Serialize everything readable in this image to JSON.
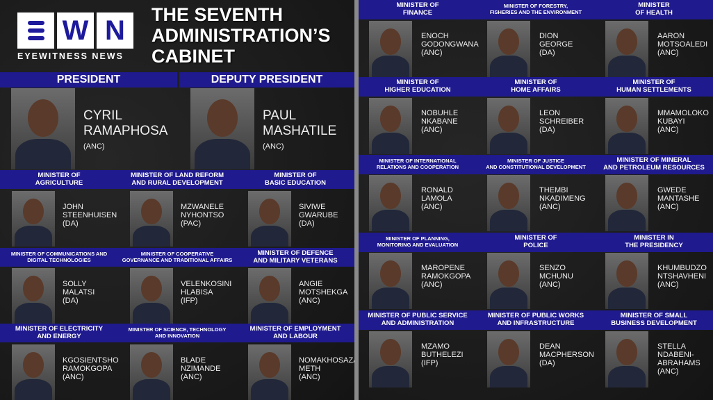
{
  "logo": {
    "letters": [
      "E",
      "W",
      "N"
    ],
    "subtitle": "EYEWITNESS NEWS"
  },
  "title": "THE SEVENTH\nADMINISTRATION’S\nCABINET",
  "colors": {
    "band": "#1f1a8e",
    "background": "#1b1b1b",
    "divider": "#8a8a8a"
  },
  "top": [
    {
      "role": "PRESIDENT",
      "name": "CYRIL\nRAMAPHOSA",
      "party": "(ANC)"
    },
    {
      "role": "DEPUTY PRESIDENT",
      "name": "PAUL\nMASHATILE",
      "party": "(ANC)"
    }
  ],
  "left_ministers": [
    {
      "role": "MINISTER OF\nAGRICULTURE",
      "name": "JOHN\nSTEENHUISEN",
      "party": "(DA)"
    },
    {
      "role": "MINISTER OF LAND REFORM\nAND RURAL DEVELOPMENT",
      "name": "MZWANELE\nNYHONTSO",
      "party": "(PAC)"
    },
    {
      "role": "MINISTER OF\nBASIC EDUCATION",
      "name": "SIVIWE\nGWARUBE",
      "party": "(DA)"
    },
    {
      "role": "MINISTER OF COMMUNICATIONS AND\nDIGITAL TECHNOLOGIES",
      "name": "SOLLY\nMALATSI",
      "party": "(DA)"
    },
    {
      "role": "MINISTER OF COOPERATIVE\nGOVERNANCE AND TRADITIONAL AFFAIRS",
      "name": "VELENKOSINI\nHLABISA",
      "party": "(IFP)"
    },
    {
      "role": "MINISTER OF DEFENCE\nAND MILITARY VETERANS",
      "name": "ANGIE\nMOTSHEKGA",
      "party": "(ANC)"
    },
    {
      "role": "MINISTER OF ELECTRICITY\nAND ENERGY",
      "name": "KGOSIENTSHO\nRAMOKGOPA",
      "party": "(ANC)"
    },
    {
      "role": "MINISTER OF SCIENCE, TECHNOLOGY\nAND INNOVATION",
      "name": "BLADE\nNZIMANDE",
      "party": "(ANC)"
    },
    {
      "role": "MINISTER OF EMPLOYMENT\nAND LABOUR",
      "name": "NOMAKHOSAZANA\nMETH",
      "party": "(ANC)"
    }
  ],
  "right_ministers": [
    {
      "role": "MINISTER OF\nFINANCE",
      "name": "ENOCH\nGODONGWANA",
      "party": "(ANC)"
    },
    {
      "role": "MINISTER OF FORESTRY,\nFISHERIES AND THE ENVIRONMENT",
      "name": "DION\nGEORGE",
      "party": "(DA)"
    },
    {
      "role": "MINISTER\nOF HEALTH",
      "name": "AARON\nMOTSOALEDI",
      "party": "(ANC)"
    },
    {
      "role": "MINISTER OF\nHIGHER EDUCATION",
      "name": "NOBUHLE\nNKABANE",
      "party": "(ANC)"
    },
    {
      "role": "MINISTER OF\nHOME AFFAIRS",
      "name": "LEON\nSCHREIBER",
      "party": "(DA)"
    },
    {
      "role": "MINISTER OF\nHUMAN SETTLEMENTS",
      "name": "MMAMOLOKO\nKUBAYI",
      "party": "(ANC)"
    },
    {
      "role": "MINISTER OF INTERNATIONAL\nRELATIONS AND COOPERATION",
      "name": "RONALD\nLAMOLA",
      "party": "(ANC)"
    },
    {
      "role": "MINISTER OF JUSTICE\nAND CONSTITUTIONAL DEVELOPMENT",
      "name": "THEMBI\nNKADIMENG",
      "party": "(ANC)"
    },
    {
      "role": "MINISTER OF MINERAL\nAND PETROLEUM RESOURCES",
      "name": "GWEDE\nMANTASHE",
      "party": "(ANC)"
    },
    {
      "role": "MINISTER OF PLANNING,\nMONITORING AND EVALUATION",
      "name": "MAROPENE\nRAMOKGOPA",
      "party": "(ANC)"
    },
    {
      "role": "MINISTER OF\nPOLICE",
      "name": "SENZO\nMCHUNU",
      "party": "(ANC)"
    },
    {
      "role": "MINISTER IN\nTHE PRESIDENCY",
      "name": "KHUMBUDZO\nNTSHAVHENI",
      "party": "(ANC)"
    },
    {
      "role": "MINISTER OF PUBLIC SERVICE\nAND ADMINISTRATION",
      "name": "MZAMO\nBUTHELEZI",
      "party": "(IFP)"
    },
    {
      "role": "MINISTER OF PUBLIC WORKS\nAND INFRASTRUCTURE",
      "name": "DEAN\nMACPHERSON",
      "party": "(DA)"
    },
    {
      "role": "MINISTER OF SMALL\nBUSINESS DEVELOPMENT",
      "name": "STELLA\nNDABENI-\nABRAHAMS",
      "party": "(ANC)"
    }
  ]
}
